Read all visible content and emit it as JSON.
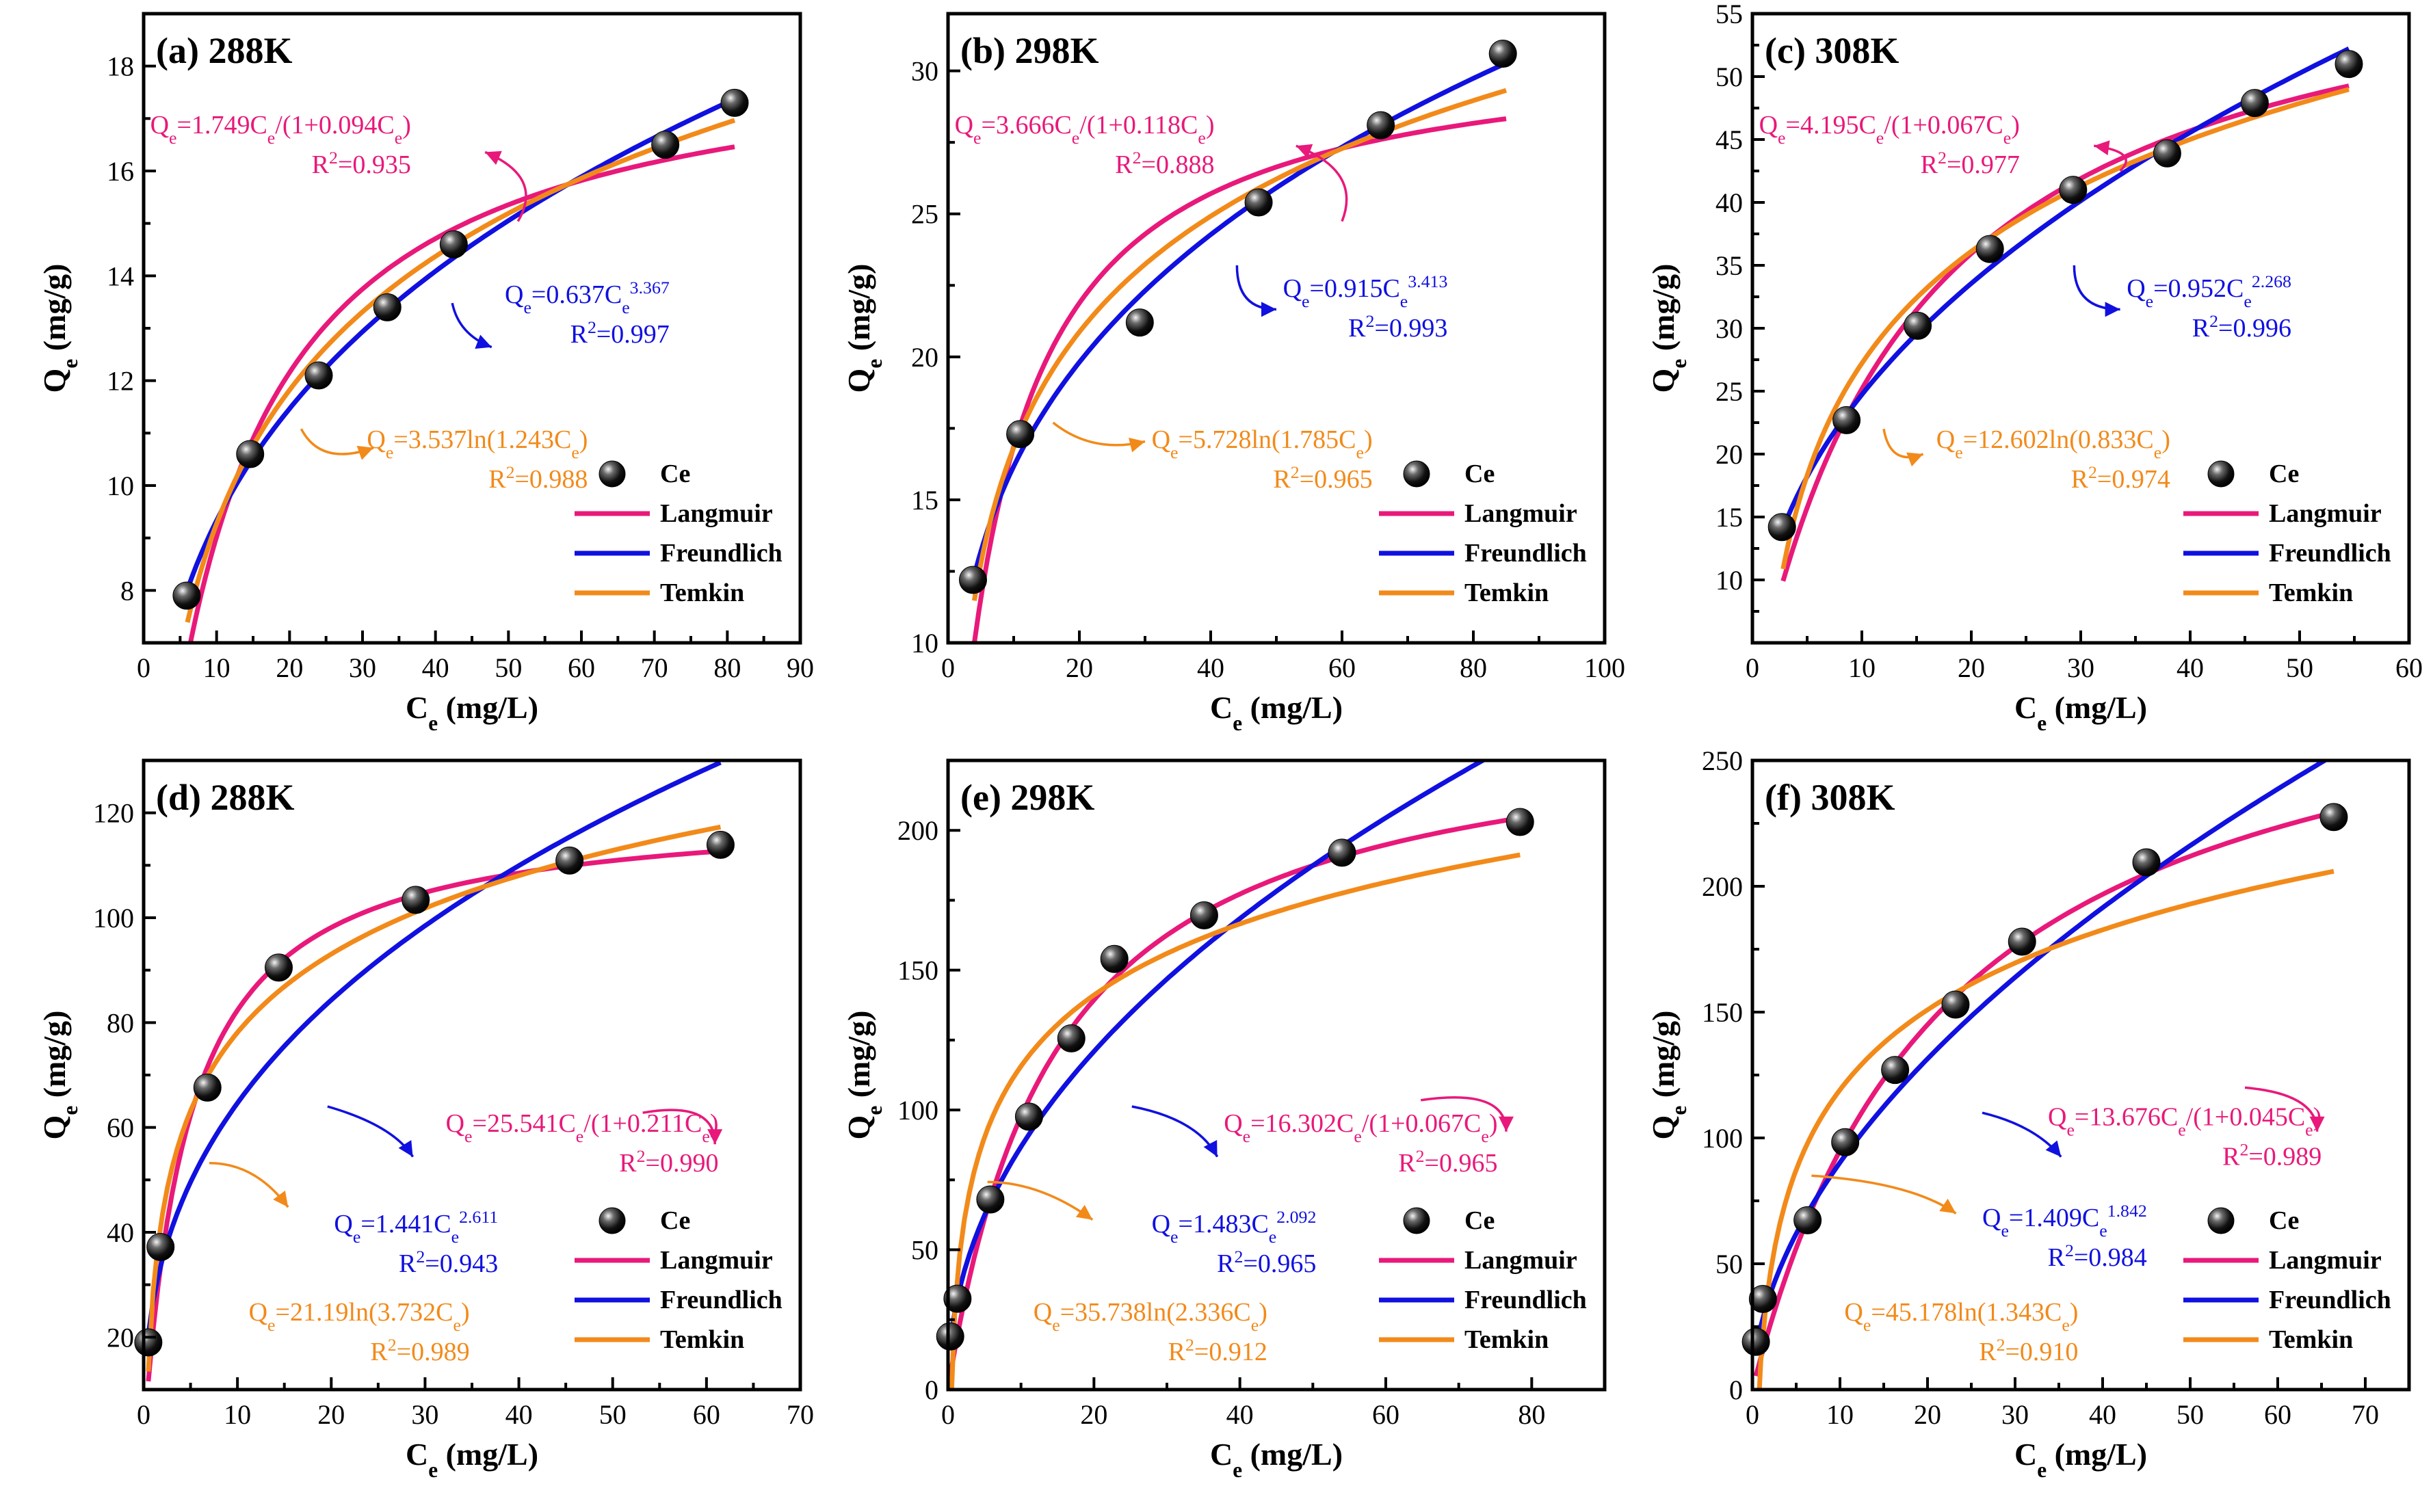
{
  "figure": {
    "series_names": [
      "Ce",
      "Langmuir",
      "Freundlich",
      "Temkin"
    ],
    "colors": {
      "Langmuir": "#e8197a",
      "Freundlich": "#1010e0",
      "Temkin": "#f28a1a",
      "Ce": "#111111"
    }
  },
  "chart_data": [
    {
      "type": "scatter",
      "title": "(a) 288K",
      "xlabel": "C_e (mg/L)",
      "ylabel": "Q_e (mg/g)",
      "xlim": [
        0,
        90
      ],
      "ylim": [
        7,
        19
      ],
      "xticks": [
        0,
        10,
        20,
        30,
        40,
        50,
        60,
        70,
        80,
        90
      ],
      "yticks": [
        8,
        10,
        12,
        14,
        16,
        18
      ],
      "grid": false,
      "legend": "bottom-right",
      "points": [
        [
          5.9,
          7.9
        ],
        [
          14.6,
          10.6
        ],
        [
          24.0,
          12.1
        ],
        [
          33.4,
          13.4
        ],
        [
          42.5,
          14.6
        ],
        [
          71.5,
          16.5
        ],
        [
          81.0,
          17.3
        ]
      ],
      "fit_range": [
        6,
        81
      ],
      "fits": {
        "Langmuir": {
          "model": "langmuir",
          "K": 1.749,
          "b": 0.094,
          "eq": "Q_e=1.749C_e/(1+0.094C_e)",
          "r2": "R^2=0.935"
        },
        "Freundlich": {
          "model": "freundlich",
          "K": 0.637,
          "n": 3.367,
          "eq": "Q_e=0.637C_e^3.367",
          "r2": "R^2=0.997"
        },
        "Temkin": {
          "model": "temkin",
          "B": 3.537,
          "A": 1.243,
          "eq": "Q_e=3.537ln(1.243C_e)",
          "r2": "R^2=0.988"
        }
      }
    },
    {
      "type": "scatter",
      "title": "(b) 298K",
      "xlabel": "C_e (mg/L)",
      "ylabel": "Q_e (mg/g)",
      "xlim": [
        0,
        100
      ],
      "ylim": [
        10,
        32
      ],
      "xticks": [
        0,
        20,
        40,
        60,
        80,
        100
      ],
      "yticks": [
        10,
        15,
        20,
        25,
        30
      ],
      "grid": false,
      "legend": "bottom-right",
      "points": [
        [
          3.8,
          12.2
        ],
        [
          11.0,
          17.3
        ],
        [
          29.2,
          21.2
        ],
        [
          47.3,
          25.4
        ],
        [
          65.9,
          28.1
        ],
        [
          84.5,
          30.6
        ]
      ],
      "fit_range": [
        4,
        85
      ],
      "fits": {
        "Langmuir": {
          "model": "langmuir",
          "K": 3.666,
          "b": 0.118,
          "eq": "Q_e=3.666C_e/(1+0.118C_e)",
          "r2": "R^2=0.888"
        },
        "Freundlich": {
          "model": "freundlich",
          "K": 0.915,
          "n": 3.413,
          "eq": "Q_e=0.915C_e^3.413",
          "r2": "R^2=0.993"
        },
        "Temkin": {
          "model": "temkin",
          "B": 5.728,
          "A": 1.785,
          "eq": "Q_e=5.728ln(1.785C_e)",
          "r2": "R^2=0.965"
        }
      }
    },
    {
      "type": "scatter",
      "title": "(c) 308K",
      "xlabel": "C_e (mg/L)",
      "ylabel": "Q_e (mg/g)",
      "xlim": [
        0,
        60
      ],
      "ylim": [
        5,
        55
      ],
      "xticks": [
        0,
        10,
        20,
        30,
        40,
        50,
        60
      ],
      "yticks": [
        10,
        15,
        20,
        25,
        30,
        35,
        40,
        45,
        50,
        55
      ],
      "grid": false,
      "legend": "bottom-right",
      "points": [
        [
          2.7,
          14.2
        ],
        [
          8.6,
          22.7
        ],
        [
          15.1,
          30.2
        ],
        [
          21.7,
          36.3
        ],
        [
          29.3,
          41.0
        ],
        [
          37.9,
          43.9
        ],
        [
          45.9,
          47.9
        ],
        [
          54.5,
          51.0
        ]
      ],
      "fit_range": [
        2.8,
        54.5
      ],
      "fits": {
        "Langmuir": {
          "model": "langmuir",
          "K": 4.195,
          "b": 0.067,
          "eq": "Q_e=4.195C_e/(1+0.067C_e)",
          "r2": "R^2=0.977"
        },
        "Freundlich": {
          "model": "freundlich",
          "K": 0.952,
          "n": 2.268,
          "eq": "Q_e=0.952C_e^2.268",
          "r2": "R^2=0.996"
        },
        "Temkin": {
          "model": "temkin",
          "B": 12.602,
          "A": 0.833,
          "eq": "Q_e=12.602ln(0.833C_e)",
          "r2": "R^2=0.974"
        }
      }
    },
    {
      "type": "scatter",
      "title": "(d) 288K",
      "xlabel": "C_e (mg/L)",
      "ylabel": "Q_e (mg/g)",
      "xlim": [
        0,
        70
      ],
      "ylim": [
        10,
        130
      ],
      "xticks": [
        0,
        10,
        20,
        30,
        40,
        50,
        60,
        70
      ],
      "yticks": [
        20,
        40,
        60,
        80,
        100,
        120
      ],
      "grid": false,
      "legend": "bottom-right",
      "points": [
        [
          0.5,
          19.0
        ],
        [
          1.8,
          37.2
        ],
        [
          6.8,
          67.6
        ],
        [
          14.4,
          90.5
        ],
        [
          29.0,
          103.4
        ],
        [
          45.4,
          110.9
        ],
        [
          61.5,
          113.9
        ]
      ],
      "fit_range": [
        0.5,
        61.5
      ],
      "fits": {
        "Langmuir": {
          "model": "langmuir",
          "K": 25.541,
          "b": 0.211,
          "eq": "Q_e=25.541C_e/(1+0.211C_e)",
          "r2": "R^2=0.990"
        },
        "Freundlich": {
          "model": "freundlich",
          "K": 1.441,
          "n": 2.611,
          "eq": "Q_e=1.441C_e^2.611",
          "r2": "R^2=0.943"
        },
        "Temkin": {
          "model": "temkin",
          "B": 21.19,
          "A": 3.732,
          "eq": "Q_e=21.19ln(3.732C_e)",
          "r2": "R^2=0.989"
        }
      }
    },
    {
      "type": "scatter",
      "title": "(e) 298K",
      "xlabel": "C_e (mg/L)",
      "ylabel": "Q_e (mg/g)",
      "xlim": [
        0,
        90
      ],
      "ylim": [
        0,
        225
      ],
      "xticks": [
        0,
        20,
        40,
        60,
        80
      ],
      "yticks": [
        0,
        50,
        100,
        150,
        200
      ],
      "grid": false,
      "legend": "bottom-right",
      "points": [
        [
          0.3,
          19.0
        ],
        [
          1.3,
          32.5
        ],
        [
          5.8,
          68.0
        ],
        [
          11.1,
          97.6
        ],
        [
          16.9,
          125.6
        ],
        [
          22.8,
          154.0
        ],
        [
          35.1,
          169.6
        ],
        [
          54.0,
          192.0
        ],
        [
          78.4,
          203.0
        ]
      ],
      "fit_range": [
        0.3,
        78.4
      ],
      "fits": {
        "Langmuir": {
          "model": "langmuir",
          "K": 16.302,
          "b": 0.067,
          "eq": "Q_e=16.302C_e/(1+0.067C_e)",
          "r2": "R^2=0.965"
        },
        "Freundlich": {
          "model": "freundlich",
          "K": 1.483,
          "n": 2.092,
          "eq": "Q_e=1.483C_e^2.092",
          "r2": "R^2=0.965"
        },
        "Temkin": {
          "model": "temkin",
          "B": 35.738,
          "A": 2.336,
          "eq": "Q_e=35.738ln(2.336C_e)",
          "r2": "R^2=0.912"
        }
      }
    },
    {
      "type": "scatter",
      "title": "(f) 308K",
      "xlabel": "C_e (mg/L)",
      "ylabel": "Q_e (mg/g)",
      "xlim": [
        0,
        75
      ],
      "ylim": [
        0,
        250
      ],
      "xticks": [
        0,
        10,
        20,
        30,
        40,
        50,
        60,
        70
      ],
      "yticks": [
        0,
        50,
        100,
        150,
        200,
        250
      ],
      "grid": false,
      "legend": "bottom-right",
      "points": [
        [
          0.4,
          19.0
        ],
        [
          1.2,
          36.0
        ],
        [
          6.3,
          67.3
        ],
        [
          10.6,
          98.3
        ],
        [
          16.3,
          127.0
        ],
        [
          23.2,
          153.0
        ],
        [
          30.8,
          178.0
        ],
        [
          45.0,
          209.5
        ],
        [
          66.4,
          227.5
        ]
      ],
      "fit_range": [
        0.4,
        66.4
      ],
      "fits": {
        "Langmuir": {
          "model": "langmuir",
          "K": 13.676,
          "b": 0.045,
          "eq": "Q_e=13.676C_e/(1+0.045C_e)",
          "r2": "R^2=0.989"
        },
        "Freundlich": {
          "model": "freundlich",
          "K": 1.409,
          "n": 1.842,
          "eq": "Q_e=1.409C_e^1.842",
          "r2": "R^2=0.984"
        },
        "Temkin": {
          "model": "temkin",
          "B": 45.178,
          "A": 1.343,
          "eq": "Q_e=45.178ln(1.343C_e)",
          "r2": "R^2=0.910"
        }
      }
    }
  ]
}
